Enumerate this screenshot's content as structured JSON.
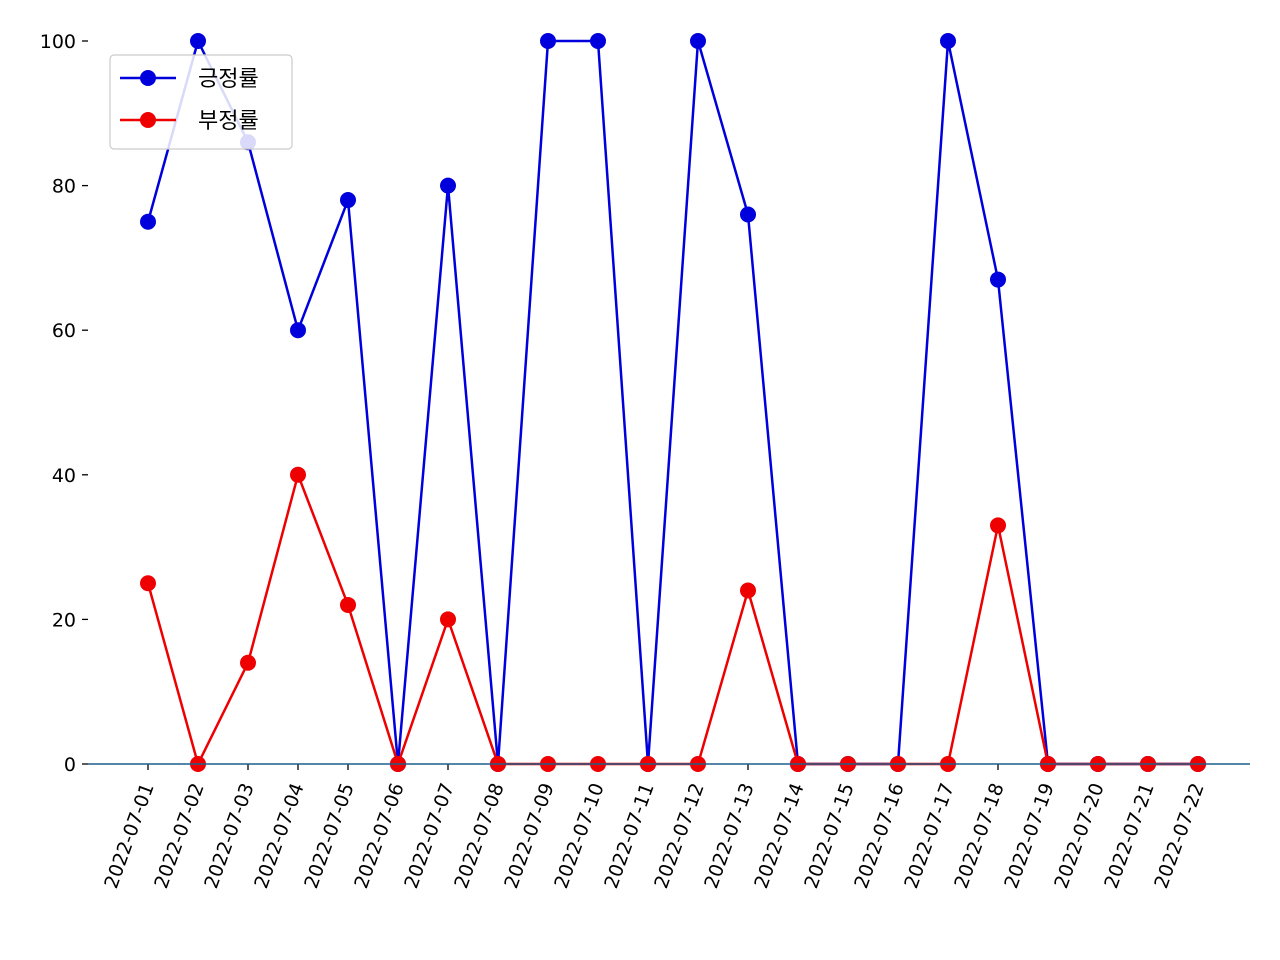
{
  "chart_data": {
    "type": "line",
    "title": "",
    "xlabel": "",
    "ylabel": "",
    "categories": [
      "2022-07-01",
      "2022-07-02",
      "2022-07-03",
      "2022-07-04",
      "2022-07-05",
      "2022-07-06",
      "2022-07-07",
      "2022-07-08",
      "2022-07-09",
      "2022-07-10",
      "2022-07-11",
      "2022-07-12",
      "2022-07-13",
      "2022-07-14",
      "2022-07-15",
      "2022-07-16",
      "2022-07-17",
      "2022-07-18",
      "2022-07-19",
      "2022-07-20",
      "2022-07-21",
      "2022-07-22"
    ],
    "ylim": [
      0,
      100
    ],
    "yticks": [
      0,
      20,
      40,
      60,
      80,
      100
    ],
    "legend_position": "top-left",
    "grid": false,
    "series": [
      {
        "name": "긍정률",
        "color": "#0000dd",
        "values": [
          75,
          100,
          86,
          60,
          78,
          0,
          80,
          0,
          100,
          100,
          0,
          100,
          76,
          0,
          0,
          0,
          100,
          67,
          0,
          0,
          0,
          0
        ]
      },
      {
        "name": "부정률",
        "color": "#ee0000",
        "values": [
          25,
          0,
          14,
          40,
          22,
          0,
          20,
          0,
          0,
          0,
          0,
          0,
          24,
          0,
          0,
          0,
          0,
          33,
          0,
          0,
          0,
          0
        ]
      }
    ],
    "baseline_color": "#1f5f8b"
  }
}
